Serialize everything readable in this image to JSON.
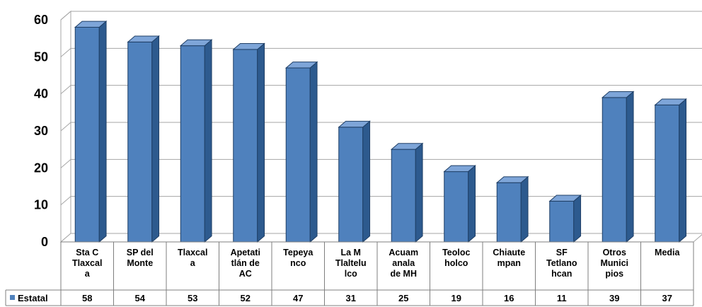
{
  "chart_data": {
    "type": "bar",
    "categories": [
      "Sta C Tlaxcal a",
      "SP del Monte",
      "Tlaxcal a",
      "Apetati tlán de AC",
      "Tepeya nco",
      "La M Tlaltelu lco",
      "Acuam anala de MH",
      "Teoloc holco",
      "Chiaute mpan",
      "SF Tetlano hcan",
      "Otros Munici pios",
      "Media"
    ],
    "category_lines": [
      [
        "Sta C",
        "Tlaxcal",
        "a"
      ],
      [
        "SP del",
        "Monte"
      ],
      [
        "Tlaxcal",
        "a"
      ],
      [
        "Apetati",
        "tlán de",
        "AC"
      ],
      [
        "Tepeya",
        "nco"
      ],
      [
        "La M",
        "Tlaltelu",
        "lco"
      ],
      [
        "Acuam",
        "anala",
        "de MH"
      ],
      [
        "Teoloc",
        "holco"
      ],
      [
        "Chiaute",
        "mpan"
      ],
      [
        "SF",
        "Tetlano",
        "hcan"
      ],
      [
        "Otros",
        "Munici",
        "pios"
      ],
      [
        "Media"
      ]
    ],
    "series": [
      {
        "name": "Estatal",
        "values": [
          58,
          54,
          53,
          52,
          47,
          31,
          25,
          19,
          16,
          11,
          39,
          37
        ]
      }
    ],
    "y_ticks": [
      "0",
      "10",
      "20",
      "30",
      "40",
      "50",
      "60"
    ],
    "ylim": [
      0,
      60
    ],
    "grid": true,
    "legend": "data-table-row-header",
    "style": "3d-column",
    "colors": {
      "bar_front": "#4f81bd",
      "bar_side": "#2d5a8e",
      "bar_top": "#7ea5d8",
      "grid": "#a6a6a6",
      "legend_key": "#4f81bd"
    }
  }
}
